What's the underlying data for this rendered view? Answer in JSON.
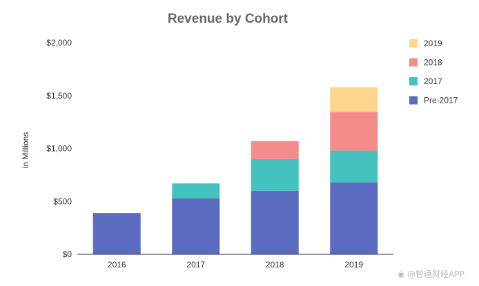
{
  "chart_data": {
    "type": "bar",
    "stacked": true,
    "title": "Revenue by Cohort",
    "xlabel": "",
    "ylabel": "in Millions",
    "categories": [
      "2016",
      "2017",
      "2018",
      "2019"
    ],
    "ylim": [
      0,
      2000
    ],
    "yticks": [
      0,
      500,
      1000,
      1500,
      2000
    ],
    "ytick_labels": [
      "$0",
      "$500",
      "$1,000",
      "$1,500",
      "$2,000"
    ],
    "grid": false,
    "legend_position": "top-right",
    "series": [
      {
        "name": "Pre-2017",
        "color": "#5B6BBF",
        "values": [
          390,
          530,
          600,
          680
        ]
      },
      {
        "name": "2017",
        "color": "#45C1BE",
        "values": [
          0,
          140,
          300,
          300
        ]
      },
      {
        "name": "2018",
        "color": "#F48C8C",
        "values": [
          0,
          0,
          170,
          365
        ]
      },
      {
        "name": "2019",
        "color": "#FDD58C",
        "values": [
          0,
          0,
          0,
          235
        ]
      }
    ]
  },
  "watermark": {
    "icon": "weibo-icon",
    "text": "@智通财经APP"
  }
}
